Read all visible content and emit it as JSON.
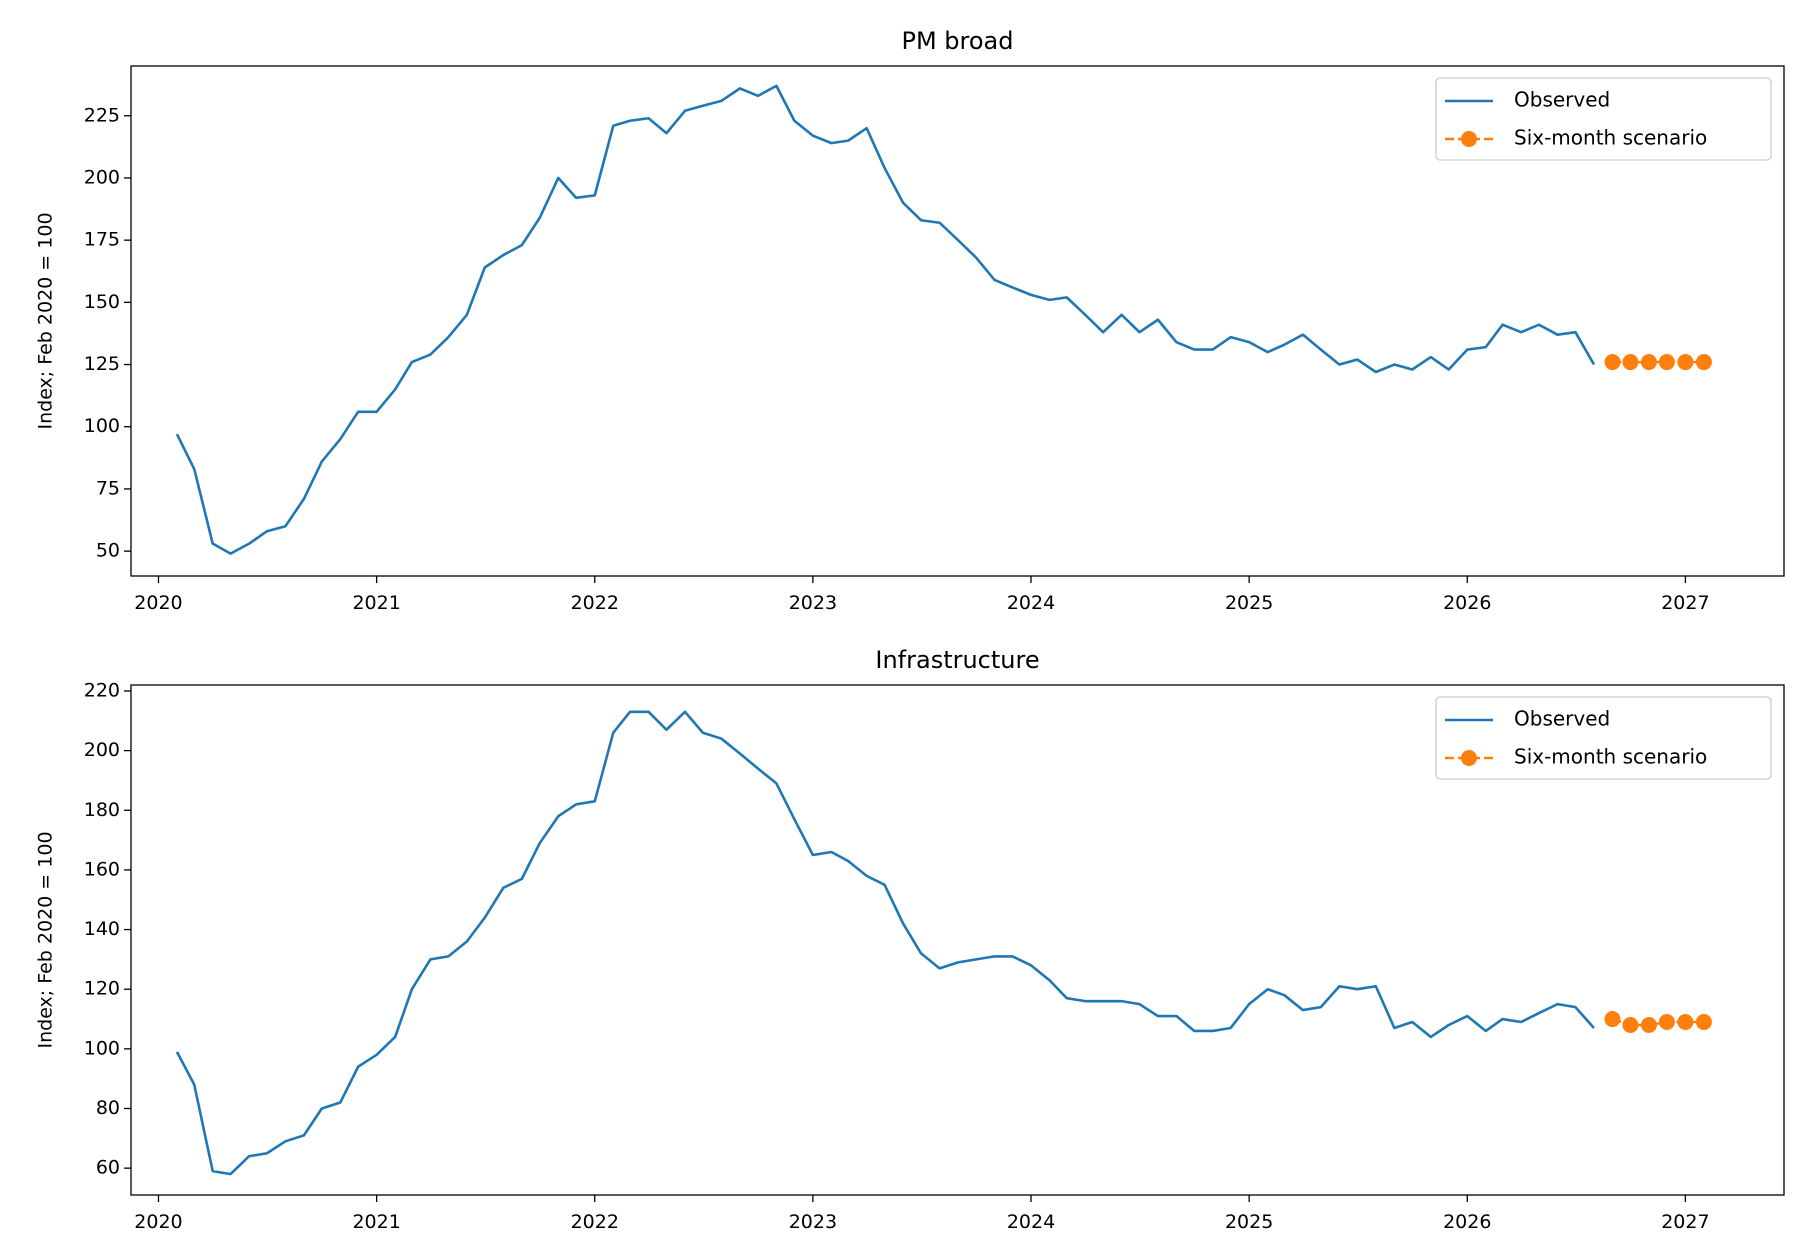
{
  "chart_data": [
    {
      "type": "line",
      "title": "PM broad",
      "ylabel": "Index; Feb 2020 = 100",
      "xlabel": "",
      "xlim": [
        "2019-11-16",
        "2027-06-15"
      ],
      "ylim": [
        40,
        245
      ],
      "xticks": [
        "2020",
        "2021",
        "2022",
        "2023",
        "2024",
        "2025",
        "2026",
        "2027"
      ],
      "yticks": [
        50,
        75,
        100,
        125,
        150,
        175,
        200,
        225
      ],
      "grid": false,
      "legend_position": "top-right",
      "series": [
        {
          "name": "Observed",
          "color": "#1f77b4",
          "style": "solid",
          "x": [
            "2020-02",
            "2020-03",
            "2020-04",
            "2020-05",
            "2020-06",
            "2020-07",
            "2020-08",
            "2020-09",
            "2020-10",
            "2020-11",
            "2020-12",
            "2021-01",
            "2021-02",
            "2021-03",
            "2021-04",
            "2021-05",
            "2021-06",
            "2021-07",
            "2021-08",
            "2021-09",
            "2021-10",
            "2021-11",
            "2021-12",
            "2022-01",
            "2022-02",
            "2022-03",
            "2022-04",
            "2022-05",
            "2022-06",
            "2022-07",
            "2022-08",
            "2022-09",
            "2022-10",
            "2022-11",
            "2022-12",
            "2023-01",
            "2023-02",
            "2023-03",
            "2023-04",
            "2023-05",
            "2023-06",
            "2023-07",
            "2023-08",
            "2023-09",
            "2023-10",
            "2023-11",
            "2023-12",
            "2024-01",
            "2024-02",
            "2024-03",
            "2024-04",
            "2024-05",
            "2024-06",
            "2024-07",
            "2024-08",
            "2024-09",
            "2024-10",
            "2024-11",
            "2024-12",
            "2025-01",
            "2025-02",
            "2025-03",
            "2025-04",
            "2025-05",
            "2025-06",
            "2025-07",
            "2025-08",
            "2025-09",
            "2025-10",
            "2025-11",
            "2025-12",
            "2026-01",
            "2026-02",
            "2026-03",
            "2026-04",
            "2026-05",
            "2026-06",
            "2026-07",
            "2026-08"
          ],
          "y": [
            97,
            83,
            53,
            49,
            53,
            58,
            60,
            71,
            86,
            95,
            106,
            106,
            115,
            126,
            129,
            136,
            145,
            164,
            169,
            173,
            184,
            200,
            192,
            193,
            221,
            223,
            224,
            218,
            227,
            229,
            231,
            236,
            233,
            237,
            223,
            217,
            214,
            215,
            220,
            204,
            190,
            183,
            182,
            175,
            168,
            159,
            156,
            153,
            151,
            152,
            145,
            138,
            145,
            138,
            143,
            134,
            131,
            131,
            136,
            134,
            130,
            133,
            137,
            131,
            125,
            127,
            122,
            125,
            123,
            128,
            123,
            131,
            132,
            141,
            138,
            141,
            137,
            138,
            125
          ]
        },
        {
          "name": "Six-month scenario",
          "color": "#ff7f0e",
          "style": "dashed-markers",
          "x": [
            "2026-09",
            "2026-10",
            "2026-11",
            "2026-12",
            "2027-01",
            "2027-02"
          ],
          "y": [
            126,
            126,
            126,
            126,
            126,
            126
          ]
        }
      ]
    },
    {
      "type": "line",
      "title": "Infrastructure",
      "ylabel": "Index; Feb 2020 = 100",
      "xlabel": "",
      "xlim": [
        "2019-11-16",
        "2027-06-15"
      ],
      "ylim": [
        51,
        222
      ],
      "xticks": [
        "2020",
        "2021",
        "2022",
        "2023",
        "2024",
        "2025",
        "2026",
        "2027"
      ],
      "yticks": [
        60,
        80,
        100,
        120,
        140,
        160,
        180,
        200,
        220
      ],
      "grid": false,
      "legend_position": "top-right",
      "series": [
        {
          "name": "Observed",
          "color": "#1f77b4",
          "style": "solid",
          "x": [
            "2020-02",
            "2020-03",
            "2020-04",
            "2020-05",
            "2020-06",
            "2020-07",
            "2020-08",
            "2020-09",
            "2020-10",
            "2020-11",
            "2020-12",
            "2021-01",
            "2021-02",
            "2021-03",
            "2021-04",
            "2021-05",
            "2021-06",
            "2021-07",
            "2021-08",
            "2021-09",
            "2021-10",
            "2021-11",
            "2021-12",
            "2022-01",
            "2022-02",
            "2022-03",
            "2022-04",
            "2022-05",
            "2022-06",
            "2022-07",
            "2022-08",
            "2022-09",
            "2022-10",
            "2022-11",
            "2022-12",
            "2023-01",
            "2023-02",
            "2023-03",
            "2023-04",
            "2023-05",
            "2023-06",
            "2023-07",
            "2023-08",
            "2023-09",
            "2023-10",
            "2023-11",
            "2023-12",
            "2024-01",
            "2024-02",
            "2024-03",
            "2024-04",
            "2024-05",
            "2024-06",
            "2024-07",
            "2024-08",
            "2024-09",
            "2024-10",
            "2024-11",
            "2024-12",
            "2025-01",
            "2025-02",
            "2025-03",
            "2025-04",
            "2025-05",
            "2025-06",
            "2025-07",
            "2025-08",
            "2025-09",
            "2025-10",
            "2025-11",
            "2025-12",
            "2026-01",
            "2026-02",
            "2026-03",
            "2026-04",
            "2026-05",
            "2026-06",
            "2026-07",
            "2026-08"
          ],
          "y": [
            99,
            88,
            59,
            58,
            64,
            65,
            69,
            71,
            80,
            82,
            94,
            98,
            104,
            120,
            130,
            131,
            136,
            144,
            154,
            157,
            169,
            178,
            182,
            183,
            206,
            213,
            213,
            207,
            213,
            206,
            204,
            199,
            194,
            189,
            177,
            165,
            166,
            163,
            158,
            155,
            142,
            132,
            127,
            129,
            130,
            131,
            131,
            128,
            123,
            117,
            116,
            116,
            116,
            115,
            111,
            111,
            106,
            106,
            107,
            115,
            120,
            118,
            113,
            114,
            121,
            120,
            121,
            107,
            109,
            104,
            108,
            111,
            106,
            110,
            109,
            112,
            115,
            114,
            107
          ]
        },
        {
          "name": "Six-month scenario",
          "color": "#ff7f0e",
          "style": "dashed-markers",
          "x": [
            "2026-09",
            "2026-10",
            "2026-11",
            "2026-12",
            "2027-01",
            "2027-02"
          ],
          "y": [
            110,
            108,
            108,
            109,
            109,
            109
          ]
        }
      ]
    }
  ]
}
